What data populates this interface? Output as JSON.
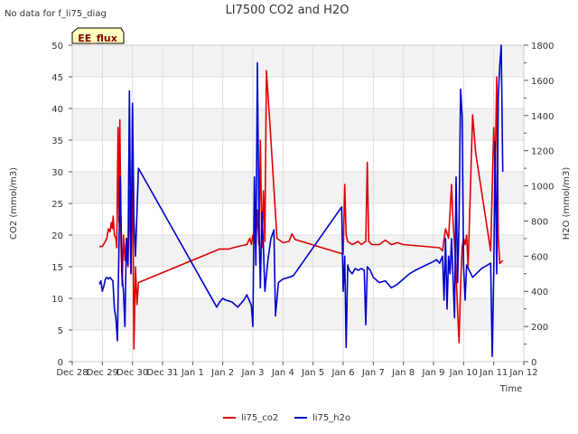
{
  "chart_data": {
    "type": "line",
    "title": "LI7500 CO2 and H2O",
    "no_data_note": "No data for f_li75_diag",
    "badge": "EE_flux",
    "xlabel": "Time",
    "ylabel_left": "CO2 (mmol/m3)",
    "ylabel_right": "H2O (mmol/m3)",
    "x_range": [
      0,
      15
    ],
    "x_ticks": [
      {
        "value": 0,
        "label": "Dec 28"
      },
      {
        "value": 1,
        "label": "Dec 29"
      },
      {
        "value": 2,
        "label": "Dec 30"
      },
      {
        "value": 3,
        "label": "Dec 31"
      },
      {
        "value": 4,
        "label": "Jan 1"
      },
      {
        "value": 5,
        "label": "Jan 2"
      },
      {
        "value": 6,
        "label": "Jan 3"
      },
      {
        "value": 7,
        "label": "Jan 4"
      },
      {
        "value": 8,
        "label": "Jan 5"
      },
      {
        "value": 9,
        "label": "Jan 6"
      },
      {
        "value": 10,
        "label": "Jan 7"
      },
      {
        "value": 11,
        "label": "Jan 8"
      },
      {
        "value": 12,
        "label": "Jan 9"
      },
      {
        "value": 13,
        "label": "Jan 10"
      },
      {
        "value": 14,
        "label": "Jan 11"
      },
      {
        "value": 15,
        "label": "Jan 12"
      }
    ],
    "ylim_left": [
      0,
      50
    ],
    "yticks_left": [
      0,
      5,
      10,
      15,
      20,
      25,
      30,
      35,
      40,
      45,
      50
    ],
    "ylim_right": [
      0,
      1800
    ],
    "yticks_right": [
      0,
      200,
      400,
      600,
      800,
      1000,
      1200,
      1400,
      1600,
      1800
    ],
    "legend_position": "bottom-center",
    "series": [
      {
        "name": "li75_co2",
        "color": "#dd0000",
        "axis": "left",
        "points": [
          [
            0.9,
            18.2
          ],
          [
            1.0,
            18.2
          ],
          [
            1.1,
            19.0
          ],
          [
            1.15,
            19.5
          ],
          [
            1.2,
            21.0
          ],
          [
            1.25,
            20.5
          ],
          [
            1.3,
            22.0
          ],
          [
            1.33,
            21.0
          ],
          [
            1.36,
            23.0
          ],
          [
            1.4,
            20.0
          ],
          [
            1.45,
            19.5
          ],
          [
            1.48,
            18.0
          ],
          [
            1.52,
            37.0
          ],
          [
            1.55,
            22.0
          ],
          [
            1.58,
            38.2
          ],
          [
            1.62,
            19.0
          ],
          [
            1.66,
            12.0
          ],
          [
            1.7,
            20.0
          ],
          [
            1.75,
            16.0
          ],
          [
            1.8,
            19.5
          ],
          [
            1.85,
            15.0
          ],
          [
            1.9,
            27.0
          ],
          [
            1.95,
            14.0
          ],
          [
            2.0,
            32.0
          ],
          [
            2.05,
            2.0
          ],
          [
            2.1,
            15.0
          ],
          [
            2.15,
            9.0
          ],
          [
            2.2,
            12.5
          ],
          [
            4.9,
            17.8
          ],
          [
            5.2,
            17.8
          ],
          [
            5.5,
            18.2
          ],
          [
            5.8,
            18.5
          ],
          [
            5.9,
            19.5
          ],
          [
            5.95,
            18.5
          ],
          [
            6.0,
            20.0
          ],
          [
            6.05,
            18.8
          ],
          [
            6.1,
            18.5
          ],
          [
            6.15,
            24.0
          ],
          [
            6.2,
            18.5
          ],
          [
            6.25,
            35.0
          ],
          [
            6.3,
            18.0
          ],
          [
            6.35,
            27.0
          ],
          [
            6.4,
            19.0
          ],
          [
            6.45,
            46.0
          ],
          [
            6.6,
            35.0
          ],
          [
            6.8,
            19.5
          ],
          [
            7.0,
            18.8
          ],
          [
            7.2,
            19.0
          ],
          [
            7.3,
            20.2
          ],
          [
            7.4,
            19.3
          ],
          [
            9.0,
            17.0
          ],
          [
            9.05,
            28.0
          ],
          [
            9.1,
            20.0
          ],
          [
            9.15,
            19.0
          ],
          [
            9.3,
            18.5
          ],
          [
            9.5,
            19.0
          ],
          [
            9.6,
            18.5
          ],
          [
            9.75,
            19.0
          ],
          [
            9.8,
            31.5
          ],
          [
            9.85,
            19.0
          ],
          [
            9.95,
            18.5
          ],
          [
            10.2,
            18.5
          ],
          [
            10.4,
            19.2
          ],
          [
            10.6,
            18.5
          ],
          [
            10.8,
            18.8
          ],
          [
            11.0,
            18.5
          ],
          [
            12.2,
            18.0
          ],
          [
            12.3,
            17.5
          ],
          [
            12.4,
            21.0
          ],
          [
            12.5,
            19.5
          ],
          [
            12.6,
            28.0
          ],
          [
            12.65,
            22.0
          ],
          [
            12.7,
            18.5
          ],
          [
            12.75,
            14.0
          ],
          [
            12.8,
            8.0
          ],
          [
            12.85,
            3.0
          ],
          [
            12.9,
            12.0
          ],
          [
            12.95,
            18.0
          ],
          [
            13.0,
            19.5
          ],
          [
            13.05,
            18.5
          ],
          [
            13.1,
            20.0
          ],
          [
            13.15,
            15.0
          ],
          [
            13.3,
            39.0
          ],
          [
            13.4,
            33.0
          ],
          [
            13.9,
            17.5
          ],
          [
            14.0,
            37.0
          ],
          [
            14.05,
            30.0
          ],
          [
            14.1,
            45.0
          ],
          [
            14.15,
            20.0
          ],
          [
            14.2,
            15.5
          ],
          [
            14.3,
            16.0
          ]
        ]
      },
      {
        "name": "li75_h2o",
        "color": "#0000cc",
        "axis": "right",
        "points": [
          [
            0.9,
            440
          ],
          [
            0.95,
            460
          ],
          [
            1.0,
            400
          ],
          [
            1.05,
            430
          ],
          [
            1.1,
            470
          ],
          [
            1.15,
            480
          ],
          [
            1.2,
            470
          ],
          [
            1.25,
            480
          ],
          [
            1.3,
            470
          ],
          [
            1.35,
            460
          ],
          [
            1.4,
            300
          ],
          [
            1.45,
            250
          ],
          [
            1.5,
            120
          ],
          [
            1.55,
            650
          ],
          [
            1.6,
            1050
          ],
          [
            1.65,
            500
          ],
          [
            1.7,
            400
          ],
          [
            1.75,
            200
          ],
          [
            1.8,
            700
          ],
          [
            1.85,
            550
          ],
          [
            1.9,
            1540
          ],
          [
            1.95,
            500
          ],
          [
            2.0,
            1470
          ],
          [
            2.05,
            800
          ],
          [
            2.1,
            600
          ],
          [
            2.2,
            1100
          ],
          [
            4.8,
            310
          ],
          [
            4.9,
            340
          ],
          [
            5.0,
            360
          ],
          [
            5.1,
            350
          ],
          [
            5.3,
            340
          ],
          [
            5.5,
            310
          ],
          [
            5.6,
            330
          ],
          [
            5.7,
            350
          ],
          [
            5.8,
            380
          ],
          [
            5.85,
            360
          ],
          [
            5.9,
            340
          ],
          [
            5.95,
            320
          ],
          [
            6.0,
            200
          ],
          [
            6.05,
            1050
          ],
          [
            6.1,
            550
          ],
          [
            6.15,
            1700
          ],
          [
            6.2,
            800
          ],
          [
            6.25,
            420
          ],
          [
            6.3,
            850
          ],
          [
            6.35,
            650
          ],
          [
            6.4,
            400
          ],
          [
            6.5,
            580
          ],
          [
            6.6,
            700
          ],
          [
            6.7,
            750
          ],
          [
            6.75,
            260
          ],
          [
            6.85,
            450
          ],
          [
            7.0,
            470
          ],
          [
            7.2,
            480
          ],
          [
            7.35,
            490
          ],
          [
            8.95,
            880
          ],
          [
            9.0,
            400
          ],
          [
            9.05,
            600
          ],
          [
            9.1,
            80
          ],
          [
            9.15,
            550
          ],
          [
            9.2,
            520
          ],
          [
            9.3,
            500
          ],
          [
            9.4,
            530
          ],
          [
            9.5,
            520
          ],
          [
            9.6,
            530
          ],
          [
            9.7,
            520
          ],
          [
            9.75,
            210
          ],
          [
            9.8,
            540
          ],
          [
            9.9,
            520
          ],
          [
            10.0,
            480
          ],
          [
            10.2,
            450
          ],
          [
            10.4,
            460
          ],
          [
            10.6,
            420
          ],
          [
            10.8,
            440
          ],
          [
            11.0,
            470
          ],
          [
            11.2,
            500
          ],
          [
            11.4,
            520
          ],
          [
            12.0,
            570
          ],
          [
            12.1,
            580
          ],
          [
            12.2,
            560
          ],
          [
            12.3,
            600
          ],
          [
            12.35,
            350
          ],
          [
            12.4,
            700
          ],
          [
            12.45,
            300
          ],
          [
            12.5,
            600
          ],
          [
            12.55,
            500
          ],
          [
            12.6,
            700
          ],
          [
            12.7,
            250
          ],
          [
            12.75,
            1050
          ],
          [
            12.8,
            450
          ],
          [
            12.85,
            800
          ],
          [
            12.9,
            1550
          ],
          [
            12.95,
            1400
          ],
          [
            13.0,
            550
          ],
          [
            13.05,
            350
          ],
          [
            13.1,
            550
          ],
          [
            13.3,
            480
          ],
          [
            13.6,
            530
          ],
          [
            13.9,
            560
          ],
          [
            13.95,
            30
          ],
          [
            14.0,
            500
          ],
          [
            14.05,
            1250
          ],
          [
            14.1,
            500
          ],
          [
            14.15,
            1500
          ],
          [
            14.2,
            1680
          ],
          [
            14.25,
            1800
          ],
          [
            14.3,
            1080
          ]
        ]
      }
    ]
  }
}
